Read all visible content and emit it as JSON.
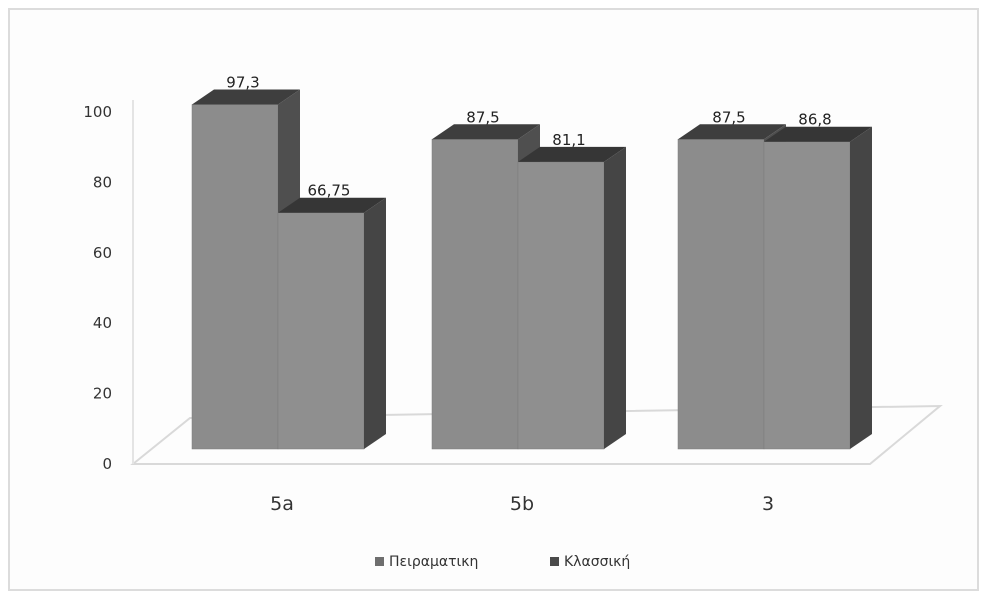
{
  "chart_data": {
    "type": "bar",
    "style": "3d-clustered-column",
    "categories": [
      "5a",
      "5b",
      "3"
    ],
    "series": [
      {
        "name": "Πειραματικη",
        "values": [
          97.3,
          87.5,
          87.5
        ]
      },
      {
        "name": "Κλασσική",
        "values": [
          66.75,
          81.1,
          86.8
        ]
      }
    ],
    "data_labels": [
      [
        "97,3",
        "66,75"
      ],
      [
        "87,5",
        "81,1"
      ],
      [
        "87,5",
        "86,8"
      ]
    ],
    "y_ticks": [
      "0",
      "20",
      "40",
      "60",
      "80",
      "100"
    ],
    "ylim": [
      0,
      100
    ],
    "grid": false,
    "legend_position": "bottom",
    "colors": {
      "series_front": [
        "#8c8c8c",
        "#8f8f8f"
      ],
      "series_side": [
        "#4f4f4f",
        "#454545"
      ],
      "series_top": [
        "#3e3e3e",
        "#363636"
      ],
      "floor": "#d9d9d9"
    }
  }
}
